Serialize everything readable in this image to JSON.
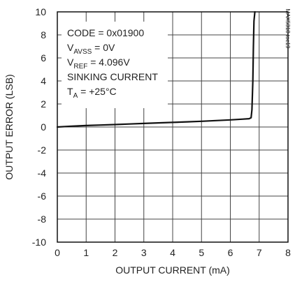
{
  "chart_data": {
    "type": "line",
    "xlabel": "OUTPUT CURRENT (mA)",
    "ylabel": "OUTPUT ERROR (LSB)",
    "xlim": [
      0,
      8
    ],
    "ylim": [
      -10,
      10
    ],
    "x_ticks": [
      "0",
      "1",
      "2",
      "3",
      "4",
      "5",
      "6",
      "7",
      "8"
    ],
    "y_ticks": [
      "10",
      "8",
      "6",
      "4",
      "2",
      "0",
      "-2",
      "-4",
      "-6",
      "-8",
      "-10"
    ],
    "grid": true,
    "annotations": {
      "code": "CODE = 0x01900",
      "vavss_prefix": "V",
      "vavss_sub": "AVSS",
      "vavss_suffix": " = 0V",
      "vref_prefix": "V",
      "vref_sub": "REF",
      "vref_suffix": " = 4.096V",
      "sinking": "SINKING CURRENT",
      "ta_prefix": "T",
      "ta_sub": "A",
      "ta_suffix": " = +25°C"
    },
    "side_id": "MAX5318 toc19",
    "series": [
      {
        "color": "#111111",
        "x": [
          0,
          0.5,
          1,
          1.5,
          2,
          2.5,
          3,
          3.5,
          4,
          4.5,
          5,
          5.5,
          6,
          6.4,
          6.65,
          6.72,
          6.75,
          6.78,
          6.8,
          6.82,
          6.85
        ],
        "y": [
          0.0,
          0.07,
          0.13,
          0.17,
          0.21,
          0.26,
          0.31,
          0.36,
          0.4,
          0.45,
          0.5,
          0.56,
          0.62,
          0.68,
          0.72,
          0.8,
          1.5,
          4.0,
          7.0,
          9.2,
          10.0
        ]
      }
    ]
  }
}
